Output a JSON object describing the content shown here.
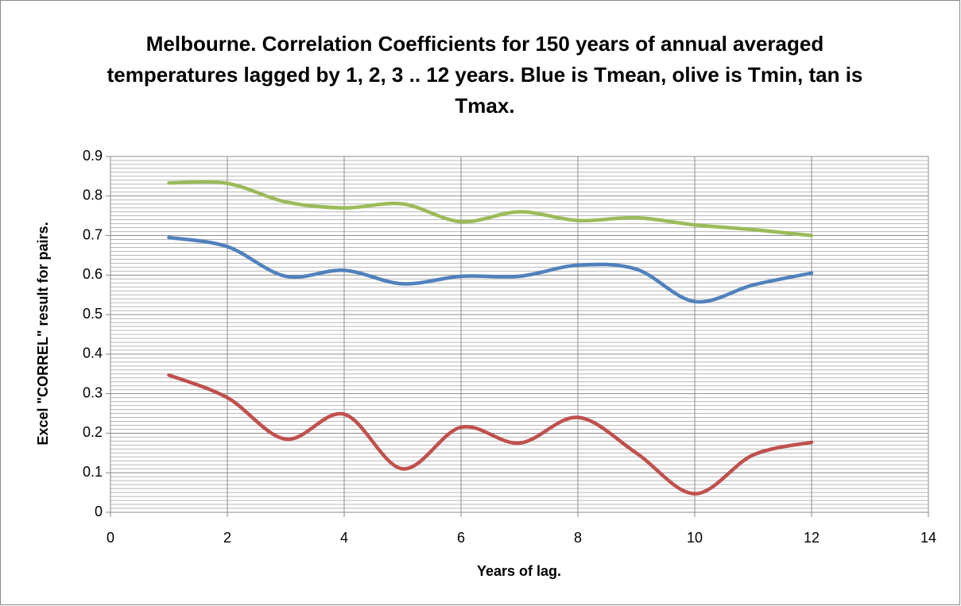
{
  "chart_data": {
    "type": "line",
    "title": "Melbourne. Correlation Coefficients for 150 years of annual averaged temperatures lagged by 1, 2, 3 .. 12 years. Blue is Tmean, olive is Tmin, tan is Tmax.",
    "xlabel": "Years of lag.",
    "ylabel": "Excel \"CORREL\" result for  pairs.",
    "x": [
      1,
      2,
      3,
      4,
      5,
      6,
      7,
      8,
      9,
      10,
      11,
      12
    ],
    "series": [
      {
        "color": "#9bbb59",
        "values": [
          0.833,
          0.832,
          0.785,
          0.77,
          0.78,
          0.735,
          0.76,
          0.738,
          0.745,
          0.727,
          0.715,
          0.7
        ]
      },
      {
        "color": "#4f81bd",
        "values": [
          0.695,
          0.672,
          0.597,
          0.612,
          0.578,
          0.597,
          0.597,
          0.625,
          0.615,
          0.533,
          0.575,
          0.605
        ]
      },
      {
        "color": "#c0504d",
        "values": [
          0.347,
          0.29,
          0.185,
          0.248,
          0.11,
          0.215,
          0.175,
          0.24,
          0.15,
          0.047,
          0.145,
          0.177
        ]
      }
    ],
    "xlim": [
      0,
      14
    ],
    "xticks": [
      0,
      2,
      4,
      6,
      8,
      10,
      12,
      14
    ],
    "ylim": [
      0,
      0.9
    ],
    "yticks": [
      0,
      0.1,
      0.2,
      0.3,
      0.4,
      0.5,
      0.6,
      0.7,
      0.8,
      0.9
    ],
    "grid": true,
    "minor_grid": true,
    "smooth": true
  }
}
